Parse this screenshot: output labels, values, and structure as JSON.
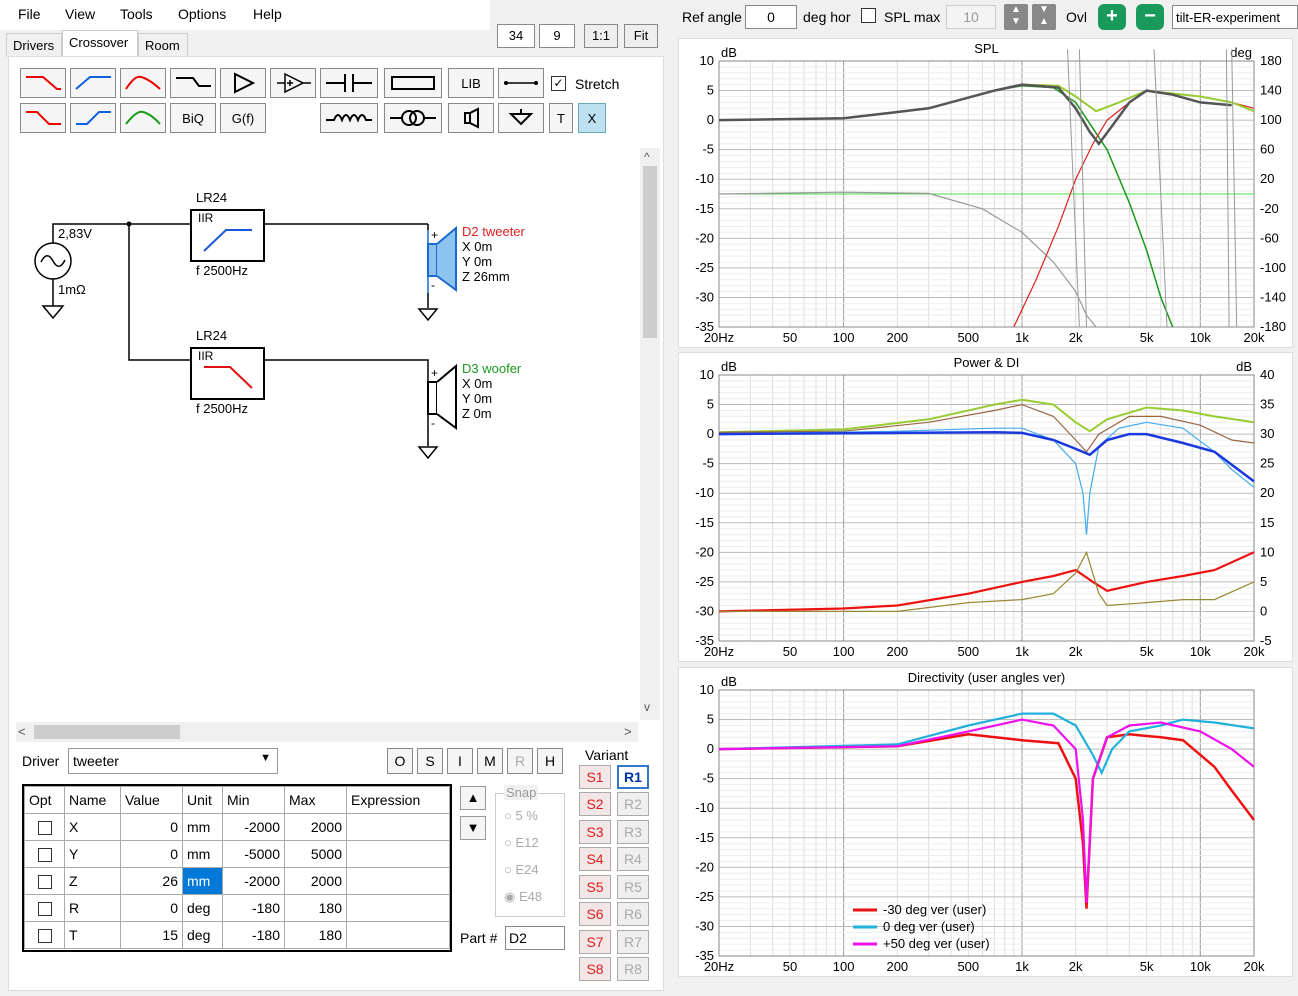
{
  "menu": {
    "file": "File",
    "view": "View",
    "tools": "Tools",
    "options": "Options",
    "help": "Help"
  },
  "tabs": {
    "drivers": "Drivers",
    "crossover": "Crossover",
    "room": "Room"
  },
  "zoom": {
    "a": "34",
    "b": "9",
    "one": "1:1",
    "fit": "Fit"
  },
  "toolbar": {
    "lib": "LIB",
    "stretch": "Stretch",
    "biq": "BiQ",
    "gf": "G(f)",
    "t": "T",
    "x": "X"
  },
  "schematic": {
    "source_voltage": "2,83V",
    "source_res": "1mΩ",
    "filter1": {
      "name": "LR24",
      "type": "IIR",
      "freq": "f  2500Hz"
    },
    "filter2": {
      "name": "LR24",
      "type": "IIR",
      "freq": "f  2500Hz"
    },
    "drv1": {
      "name": "D2 tweeter",
      "x": "X 0m",
      "y": "Y 0m",
      "z": "Z 26mm",
      "color": "#e02020"
    },
    "drv2": {
      "name": "D3 woofer",
      "x": "X 0m",
      "y": "Y 0m",
      "z": "Z 0m",
      "color": "#1a9a1a"
    },
    "plus": "+",
    "minus": "-"
  },
  "driver": {
    "label": "Driver",
    "value": "tweeter"
  },
  "ohbuttons": [
    "O",
    "S",
    "I",
    "M",
    "R",
    "H"
  ],
  "grid": {
    "headers": [
      "Opt",
      "Name",
      "Value",
      "Unit",
      "Min",
      "Max",
      "Expression"
    ],
    "rows": [
      [
        "X",
        "0",
        "mm",
        "-2000",
        "2000"
      ],
      [
        "Y",
        "0",
        "mm",
        "-5000",
        "5000"
      ],
      [
        "Z",
        "26",
        "mm",
        "-2000",
        "2000"
      ],
      [
        "R",
        "0",
        "deg",
        "-180",
        "180"
      ],
      [
        "T",
        "15",
        "deg",
        "-180",
        "180"
      ]
    ]
  },
  "snap": {
    "title": "Snap",
    "options": [
      "5 %",
      "E12",
      "E24",
      "E48"
    ]
  },
  "part": {
    "label": "Part #",
    "value": "D2"
  },
  "variant": {
    "title": "Variant",
    "s": [
      "S1",
      "S2",
      "S3",
      "S4",
      "S5",
      "S6",
      "S7",
      "S8"
    ],
    "r": [
      "R1",
      "R2",
      "R3",
      "R4",
      "R5",
      "R6",
      "R7",
      "R8"
    ]
  },
  "topbar": {
    "ref_angle_label": "Ref angle",
    "ref_angle": "0",
    "deg_hor": "deg hor",
    "spl_max": "SPL max",
    "spl_max_val": "10",
    "ovl": "Ovl",
    "preset": "tilt-ER-experiment"
  },
  "charts": {
    "spl": {
      "title": "SPL",
      "yl": "dB",
      "yr": "deg",
      "left": [
        "10",
        "5",
        "0",
        "-5",
        "-10",
        "-15",
        "-20",
        "-25",
        "-30",
        "-35"
      ],
      "right": [
        "180",
        "140",
        "100",
        "60",
        "20",
        "-20",
        "-60",
        "-100",
        "-140",
        "-180"
      ]
    },
    "power": {
      "title": "Power & DI",
      "yl": "dB",
      "yr": "dB",
      "left": [
        "10",
        "5",
        "0",
        "-5",
        "-10",
        "-15",
        "-20",
        "-25",
        "-30",
        "-35"
      ],
      "right": [
        "40",
        "35",
        "30",
        "25",
        "20",
        "15",
        "10",
        "5",
        "0",
        "-5"
      ]
    },
    "dir": {
      "title": "Directivity (user angles ver)",
      "yl": "dB",
      "left": [
        "10",
        "5",
        "0",
        "-5",
        "-10",
        "-15",
        "-20",
        "-25",
        "-30",
        "-35"
      ],
      "legend": [
        {
          "label": "-30 deg ver (user)",
          "color": "#ee1111"
        },
        {
          "label": "0 deg ver (user)",
          "color": "#22b0dd"
        },
        {
          "label": "+50 deg ver (user)",
          "color": "#ee11ee"
        }
      ]
    },
    "xticks": [
      "20Hz",
      "50",
      "100",
      "200",
      "500",
      "1k",
      "2k",
      "5k",
      "10k",
      "20k"
    ]
  }
}
